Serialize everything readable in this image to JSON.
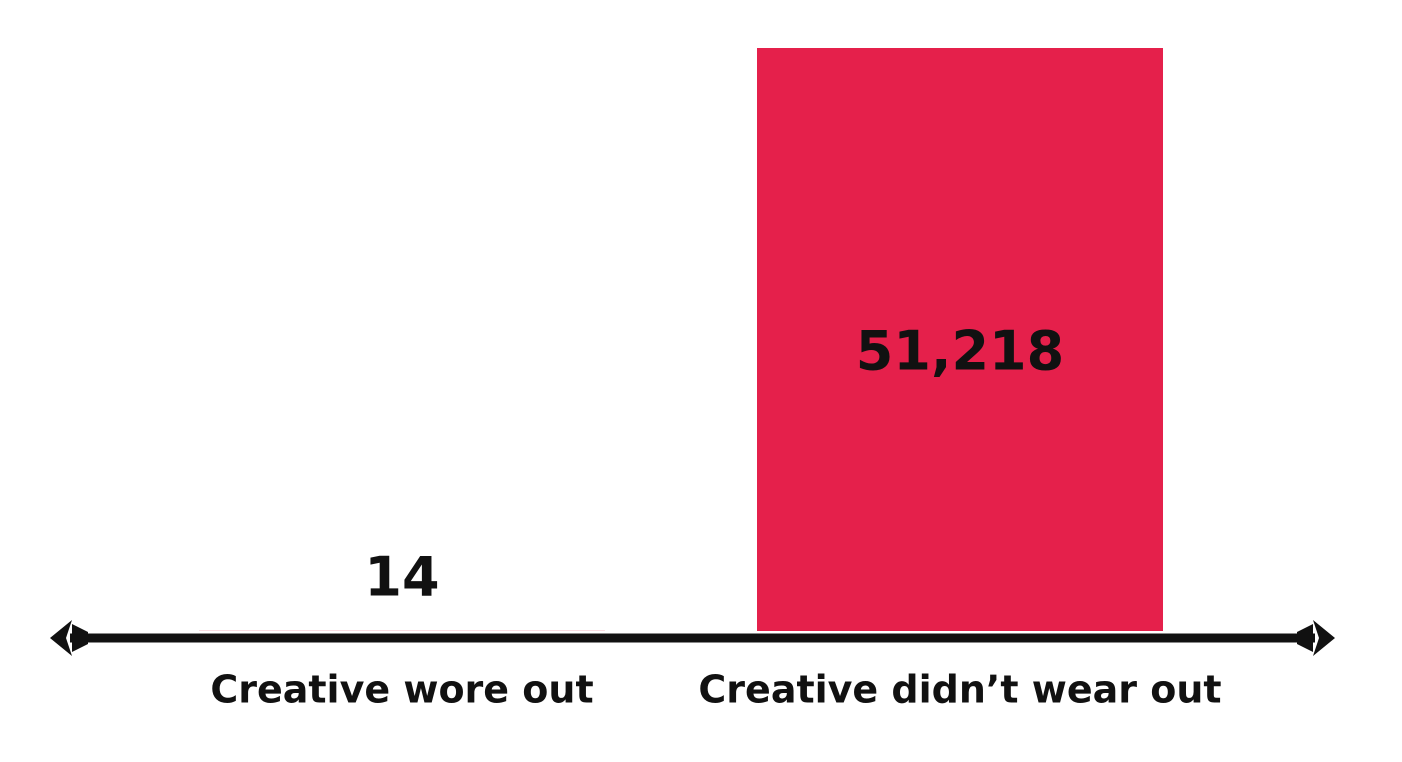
{
  "chart_data": {
    "type": "bar",
    "categories": [
      "Creative wore out",
      "Creative didn’t wear out"
    ],
    "values": [
      14,
      51218
    ],
    "value_labels": [
      "14",
      "51,218"
    ],
    "color": "#e5204b"
  }
}
